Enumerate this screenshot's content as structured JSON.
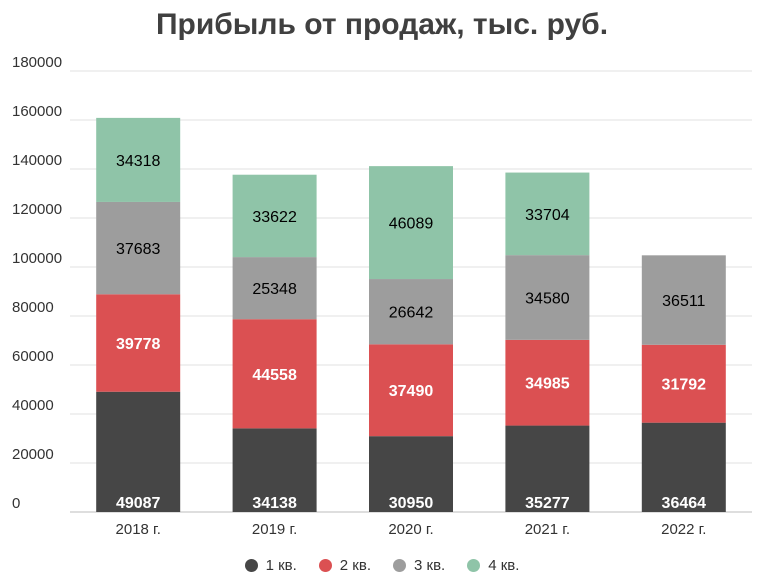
{
  "chart_data": {
    "type": "bar",
    "stacked": true,
    "title": "Прибыль от продаж, тыс. руб.",
    "categories": [
      "2018 г.",
      "2019 г.",
      "2020 г.",
      "2021 г.",
      "2022 г."
    ],
    "series": [
      {
        "name": "1 кв.",
        "color": "#464646",
        "label_color": "#ffffff",
        "values": [
          49087,
          34138,
          30950,
          35277,
          36464
        ]
      },
      {
        "name": "2 кв.",
        "color": "#db5052",
        "label_color": "#ffffff",
        "values": [
          39778,
          44558,
          37490,
          34985,
          31792
        ]
      },
      {
        "name": "3 кв.",
        "color": "#9d9d9d",
        "label_color": "#000000",
        "values": [
          37683,
          25348,
          26642,
          34580,
          36511
        ]
      },
      {
        "name": "4 кв.",
        "color": "#8fc4a8",
        "label_color": "#000000",
        "values": [
          34318,
          33622,
          46089,
          33704,
          null
        ]
      }
    ],
    "yticks": [
      0,
      20000,
      40000,
      60000,
      80000,
      100000,
      120000,
      140000,
      160000,
      180000
    ],
    "ylim": [
      0,
      180000
    ],
    "grid": true,
    "legend_position": "bottom"
  }
}
